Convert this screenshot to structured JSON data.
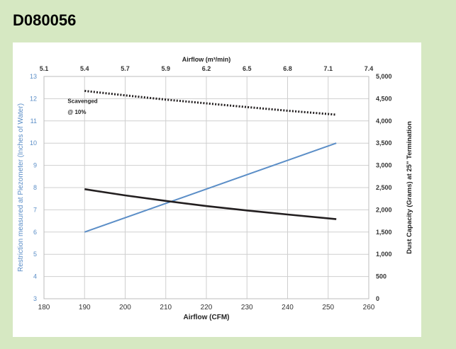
{
  "header": {
    "part_number": "D080056"
  },
  "colors": {
    "background": "#d6e8c2",
    "restriction_line": "#5b8ec7",
    "capacity_line": "#231f20",
    "scavenged_line": "#231f20",
    "left_axis_text": "#5b8ec7"
  },
  "chart_data": {
    "type": "line",
    "title": "",
    "xlabel": "Airflow (CFM)",
    "x_top_label": "Airflow (m³/min)",
    "ylabel_left": "Restriction measured at Piezometer (Inches of Water)",
    "ylabel_right": "Dust Capacity (Grams) at 25\" Termination",
    "xlim": [
      180,
      260
    ],
    "x_ticks": [
      "180",
      "190",
      "200",
      "210",
      "220",
      "230",
      "240",
      "250",
      "260"
    ],
    "x_top_lim": [
      5.1,
      7.4
    ],
    "x_top_ticks": [
      "5.1",
      "5.4",
      "5.7",
      "5.9",
      "6.2",
      "6.5",
      "6.8",
      "7.1",
      "7.4"
    ],
    "ylim_left": [
      3,
      13
    ],
    "y_left_ticks": [
      "3",
      "4",
      "5",
      "6",
      "7",
      "8",
      "9",
      "10",
      "11",
      "12",
      "13"
    ],
    "ylim_right": [
      0,
      5000
    ],
    "y_right_ticks": [
      "0",
      "500",
      "1,000",
      "1,500",
      "2,000",
      "2,500",
      "3,000",
      "3,500",
      "4,000",
      "4,500",
      "5,000"
    ],
    "grid": true,
    "series": [
      {
        "axis": "left",
        "style": "solid",
        "color": "#5b8ec7",
        "x": [
          190,
          252
        ],
        "y": [
          6.0,
          10.0
        ]
      },
      {
        "axis": "left",
        "style": "solid",
        "color": "#231f20",
        "x": [
          190,
          200,
          210,
          220,
          230,
          240,
          252
        ],
        "y": [
          7.93,
          7.65,
          7.4,
          7.17,
          6.97,
          6.79,
          6.58
        ]
      },
      {
        "axis": "left",
        "style": "dotted",
        "color": "#231f20",
        "x": [
          190,
          200,
          210,
          220,
          230,
          240,
          252
        ],
        "y": [
          12.35,
          12.15,
          11.96,
          11.79,
          11.62,
          11.46,
          11.28
        ]
      }
    ],
    "annotations": [
      {
        "text": "Scavenged",
        "x": 193,
        "y": 11.9
      },
      {
        "text": "@ 10%",
        "x": 193,
        "y": 11.4
      }
    ]
  }
}
